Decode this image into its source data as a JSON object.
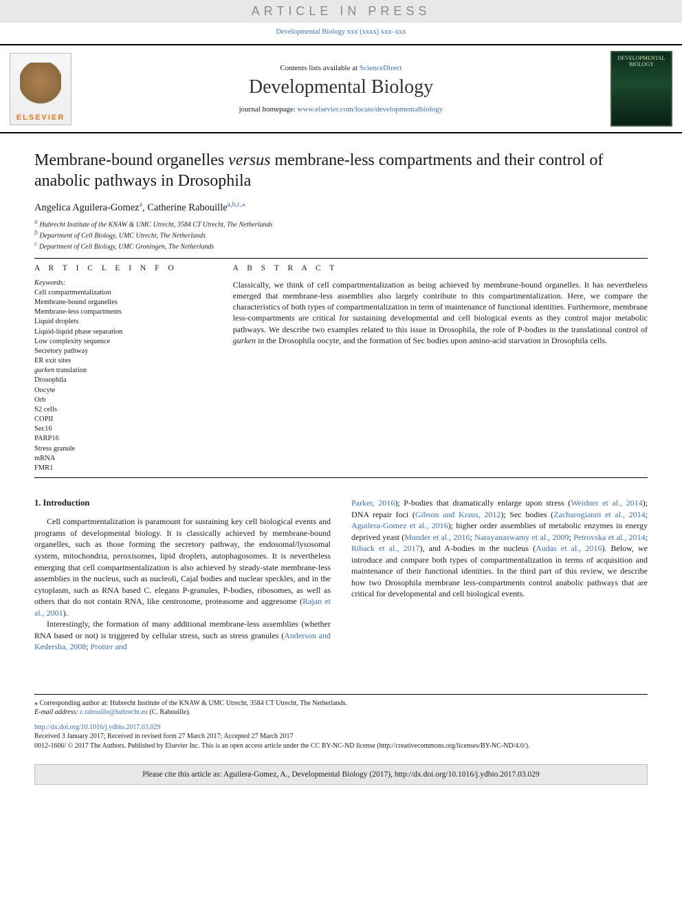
{
  "banner_text": "ARTICLE IN PRESS",
  "top_citation": {
    "journal_short": "Developmental Biology",
    "vol_pages": "xxx (xxxx) xxx–xxx"
  },
  "masthead": {
    "contents_prefix": "Contents lists available at ",
    "contents_link": "ScienceDirect",
    "journal_name": "Developmental Biology",
    "homepage_prefix": "journal homepage: ",
    "homepage_url": "www.elsevier.com/locate/developmentalbiology",
    "publisher_logo_text": "ELSEVIER",
    "cover_label": "DEVELOPMENTAL BIOLOGY"
  },
  "title_pre": "Membrane-bound organelles ",
  "title_em": "versus",
  "title_post": " membrane-less compartments and their control of anabolic pathways in Drosophila",
  "authors": [
    {
      "name": "Angelica Aguilera-Gomez",
      "sup": "a"
    },
    {
      "name": "Catherine Rabouille",
      "sup": "a,b,c,⁎"
    }
  ],
  "affiliations": [
    {
      "sup": "a",
      "text": "Hubrecht Institute of the KNAW & UMC Utrecht, 3584 CT Utrecht, The Netherlands"
    },
    {
      "sup": "b",
      "text": "Department of Cell Biology, UMC Utrecht, The Netherlands"
    },
    {
      "sup": "c",
      "text": "Department of Cell Biology, UMC Groningen, The Netherlands"
    }
  ],
  "article_info_head": "A R T I C L E   I N F O",
  "abstract_head": "A B S T R A C T",
  "keywords_label": "Keywords:",
  "keywords": [
    "Cell compartmentalization",
    "Membrane-bound organelles",
    "Membrane-less compartments",
    "Liquid droplets",
    "Liquid-liquid phase separation",
    "Low complexity sequence",
    "Secretory pathway",
    "ER exit sites",
    "gurken translation",
    "Drosophila",
    "Oocyte",
    "Orb",
    "S2 cells",
    "COPII",
    "Sec16",
    "PARP16",
    "Stress granule",
    "mRNA",
    "FMR1"
  ],
  "keywords_italic_index": 8,
  "abstract_text": "Classically, we think of cell compartmentalization as being achieved by membrane-bound organelles. It has nevertheless emerged that membrane-less assemblies also largely contribute to this compartmentalization. Here, we compare the characteristics of both types of compartmentalization in term of maintenance of functional identities. Furthermore, membrane less-compartments are critical for sustaining developmental and cell biological events as they control major metabolic pathways. We describe two examples related to this issue in Drosophila, the role of P-bodies in the translational control of ",
  "abstract_em": "gurken",
  "abstract_tail": " in the Drosophila oocyte, and the formation of Sec bodies upon amino-acid starvation in Drosophila cells.",
  "section1_head": "1. Introduction",
  "col1_p1_a": "Cell compartmentalization is paramount for sustaining key cell biological events and programs of developmental biology. It is classically achieved by membrane-bound organelles, such as those forming the secretory pathway, the endosomal/lysosomal system, mitochondria, peroxisomes, lipid droplets, autophagosomes. It is nevertheless emerging that cell compartmentalization is also achieved by steady-state membrane-less assemblies in the nucleus, such as nucleoli, Cajal bodies and nuclear speckles, and in the cytoplasm, such as RNA based C. elegans P-granules, P-bodies, ribosomes, as well as others that do not contain RNA, like centrosome, proteasome and aggresome (",
  "col1_p1_ref": "Rajan et al., 2001",
  "col1_p1_b": ").",
  "col1_p2_a": "Interestingly, the formation of many additional membrane-less assemblies (whether RNA based or not) is triggered by cellular stress, such as stress granules (",
  "col1_p2_ref1": "Anderson and Kedersha, 2008",
  "col1_p2_sep": "; ",
  "col1_p2_ref2": "Protter and",
  "col2_frag1_ref": "Parker, 2016",
  "col2_frag1_a": "); P-bodies that dramatically enlarge upon stress (",
  "col2_ref2": "Weidner et al., 2014",
  "col2_frag2": "); DNA repair foci (",
  "col2_ref3": "Gibson and Kraus, 2012",
  "col2_frag3": "); Sec bodies (",
  "col2_ref4": "Zacharogianni et al., 2014",
  "col2_sep1": "; ",
  "col2_ref5": "Aguilera-Gomez et al., 2016",
  "col2_frag4": "); higher order assemblies of metabolic enzymes in energy deprived yeast (",
  "col2_ref6": "Munder et al., 2016",
  "col2_sep2": "; ",
  "col2_ref7": "Narayanaswamy et al., 2009",
  "col2_sep3": "; ",
  "col2_ref8": "Petrovska et al., 2014",
  "col2_sep4": "; ",
  "col2_ref9": "Riback et al., 2017",
  "col2_frag5": "), and A-bodies in the nucleus (",
  "col2_ref10": "Audas et al., 2016",
  "col2_tail": "). Below, we introduce and compare both types of compartmentalization in terms of acquisition and maintenance of their functional identities. In the third part of this review, we describe how two Drosophila membrane less-compartments control anabolic pathways that are critical for developmental and cell biological events.",
  "footnote_marker": "⁎",
  "corr_text": "Corresponding author at: Hubrecht Institute of the KNAW & UMC Utrecht, 3584 CT Utrecht, The Netherlands.",
  "email_label": "E-mail address: ",
  "email": "c.rabouille@hubrecht.eu",
  "email_tail": " (C. Rabouille).",
  "doi_url": "http://dx.doi.org/10.1016/j.ydbio.2017.03.029",
  "received_line": "Received 3 January 2017; Received in revised form 27 March 2017; Accepted 27 March 2017",
  "copyright_line": "0012-1606/ © 2017 The Authors. Published by Elsevier Inc. This is an open access article under the CC BY-NC-ND license (http://creativecommons.org/licenses/BY-NC-ND/4.0/).",
  "cite_box": "Please cite this article as: Aguilera-Gomez, A., Developmental Biology (2017), http://dx.doi.org/10.1016/j.ydbio.2017.03.029",
  "colors": {
    "link": "#3b6fb6",
    "banner_bg": "#e8e8e8",
    "banner_fg": "#8a8a8a",
    "elsevier_orange": "#e67817"
  }
}
